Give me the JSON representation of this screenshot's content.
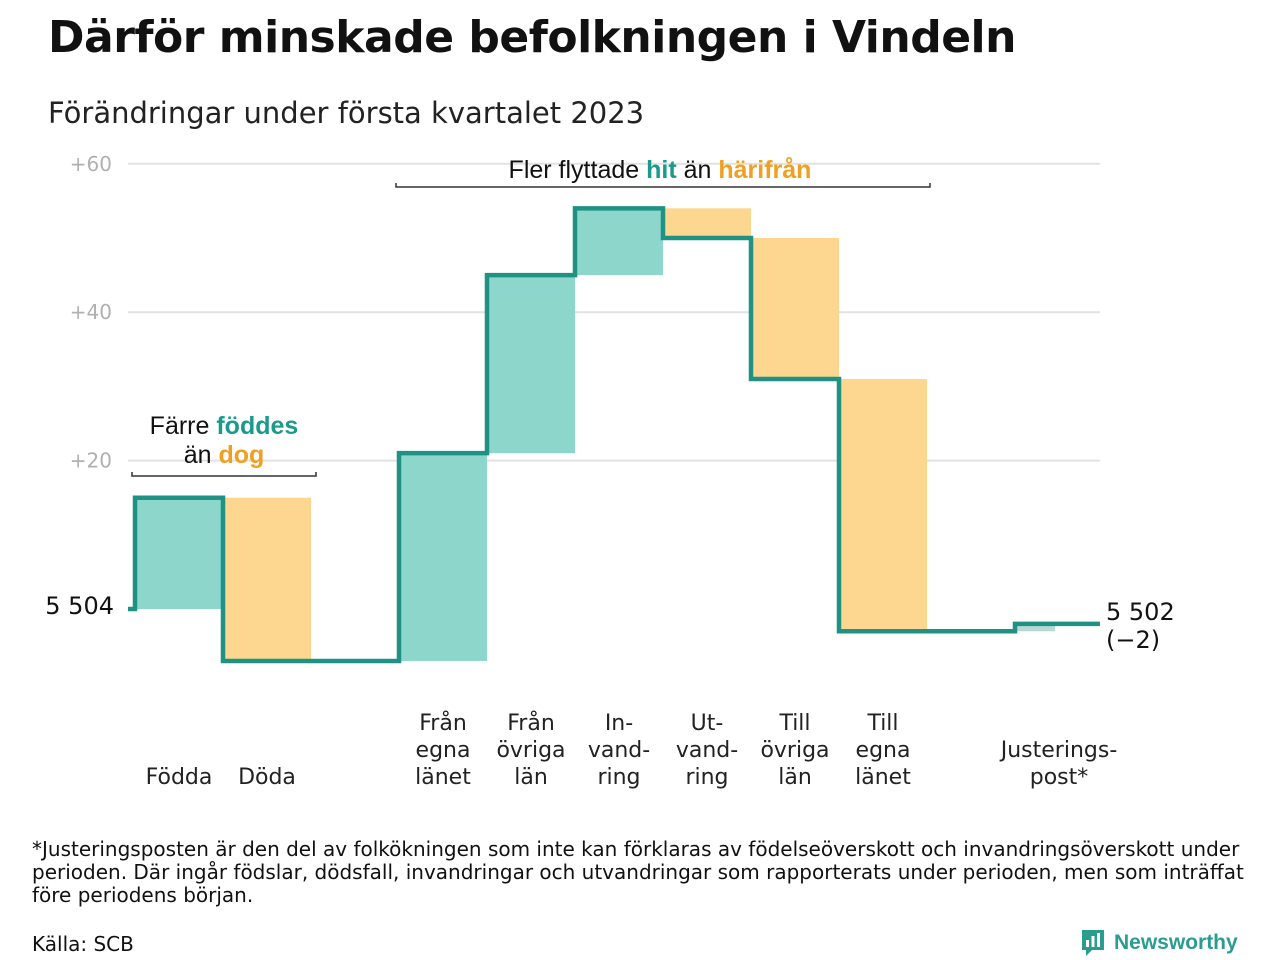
{
  "title": "Därför minskade befolkningen i Vindeln",
  "subtitle": "Förändringar under första kvartalet 2023",
  "colors": {
    "increase": "#8dd6cc",
    "decrease": "#fdd68f",
    "line": "#1f9284",
    "grid": "#e2e2e2",
    "adjustment": "#b8d8d4"
  },
  "chart_data": {
    "type": "waterfall",
    "start_label": "5 504",
    "end_label": "5 502",
    "end_change": "(−2)",
    "yticks": [
      {
        "value": 20,
        "label": "+20"
      },
      {
        "value": 40,
        "label": "+40"
      },
      {
        "value": 60,
        "label": "+60"
      }
    ],
    "ylim": [
      -10,
      62
    ],
    "steps": [
      {
        "lines": [
          "Födda"
        ],
        "change": 15,
        "kind": "increase"
      },
      {
        "lines": [
          "Döda"
        ],
        "change": -22,
        "kind": "decrease"
      },
      {
        "lines": [],
        "change": 0,
        "kind": "gap"
      },
      {
        "lines": [
          "Från",
          "egna",
          "länet"
        ],
        "change": 28,
        "kind": "increase"
      },
      {
        "lines": [
          "Från",
          "övriga",
          "län"
        ],
        "change": 24,
        "kind": "increase"
      },
      {
        "lines": [
          "In-",
          "vand-",
          "ring"
        ],
        "change": 9,
        "kind": "increase"
      },
      {
        "lines": [
          "Ut-",
          "vand-",
          "ring"
        ],
        "change": -4,
        "kind": "decrease"
      },
      {
        "lines": [
          "Till",
          "övriga",
          "län"
        ],
        "change": -19,
        "kind": "decrease"
      },
      {
        "lines": [
          "Till",
          "egna",
          "länet"
        ],
        "change": -34,
        "kind": "decrease"
      },
      {
        "lines": [],
        "change": 0,
        "kind": "gap"
      },
      {
        "lines": [
          "Justerings-",
          "post*"
        ],
        "change": 1,
        "kind": "adjustment"
      }
    ],
    "annotations": [
      {
        "parts": [
          {
            "text": "Färre ",
            "style": "plain"
          },
          {
            "text": "föddes",
            "style": "teal"
          }
        ]
      },
      {
        "parts": [
          {
            "text": "än ",
            "style": "plain"
          },
          {
            "text": "dog",
            "style": "orange"
          }
        ]
      },
      {
        "parts": [
          {
            "text": "Fler flyttade ",
            "style": "plain"
          },
          {
            "text": "hit",
            "style": "teal"
          },
          {
            "text": " än ",
            "style": "plain"
          },
          {
            "text": "härifrån",
            "style": "orange"
          }
        ]
      }
    ]
  },
  "footnote": "*Justeringsposten är den del av folkökningen som inte kan förklaras av födelseöverskott och invandringsöverskott under perioden. Där ingår födslar, dödsfall, invandringar och utvandringar som rapporterats under perioden, men som inträffat före periodens början.",
  "source": "Källa: SCB",
  "brand": "Newsworthy"
}
